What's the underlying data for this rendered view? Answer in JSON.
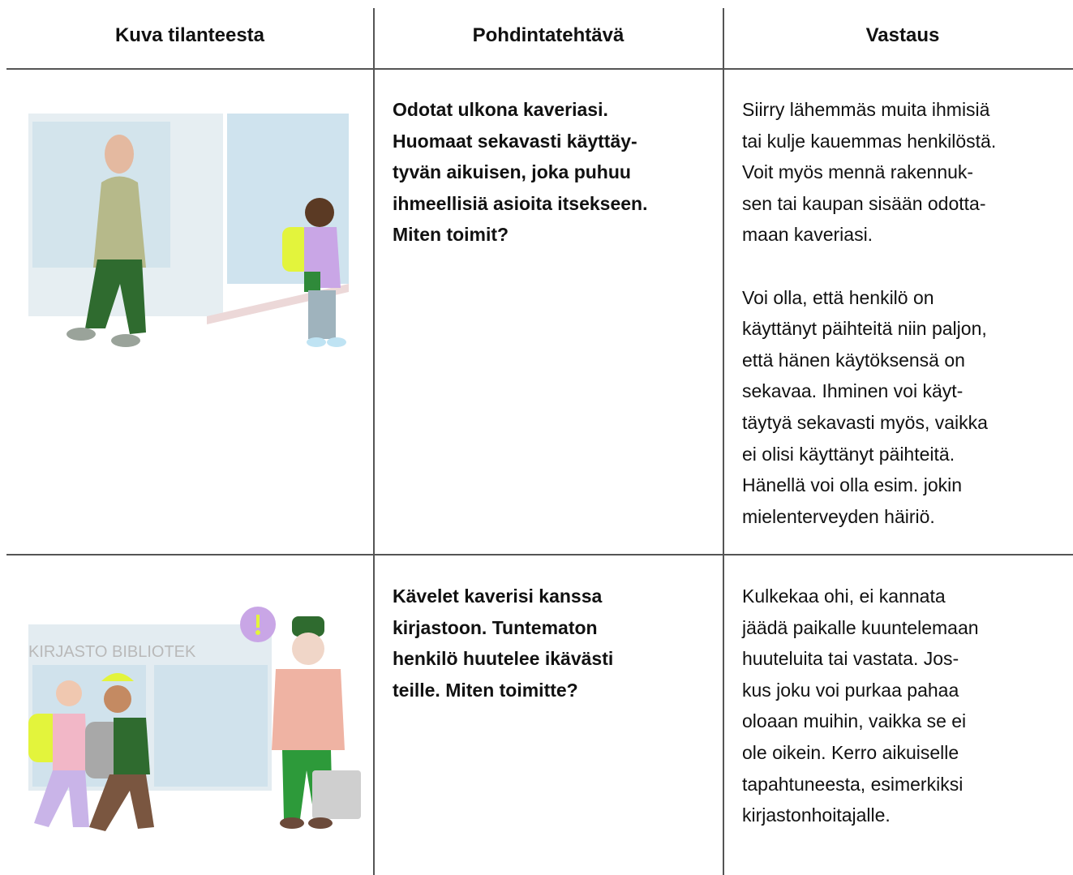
{
  "table": {
    "header": [
      "Kuva tilanteesta",
      "Pohdintatehtävä",
      "Vastaus"
    ],
    "rows": [
      {
        "task": [
          "Odotat ulkona kaveriasi.",
          "Huomaat sekavasti käyttäy-",
          "tyvän aikuisen, joka puhuu",
          "ihmeellisiä asioita itsekseen.",
          "Miten toimit?"
        ],
        "answer": [
          [
            "Siirry lähemmäs muita ihmisiä",
            "tai kulje kauemmas henkilöstä.",
            "Voit myös mennä rakennuk-",
            "sen tai kaupan sisään odotta-",
            "maan kaveriasi."
          ],
          [
            "Voi olla, että henkilö on",
            "käyttänyt päihteitä niin paljon,",
            "että hänen käytöksensä on",
            "sekavaa. Ihminen voi käyt-",
            "täytyä sekavasti myös, vaikka",
            "ei olisi käyttänyt päihteitä.",
            "Hänellä voi olla esim. jokin",
            "mielenterveyden häiriö."
          ]
        ]
      },
      {
        "image_text": "KIRJASTO  BIBLIOTEK",
        "task": [
          "Kävelet kaverisi kanssa",
          "kirjastoon. Tuntematon",
          "henkilö huutelee ikävästi",
          "teille. Miten toimitte?"
        ],
        "answer": [
          [
            "Kulkekaa ohi, ei kannata",
            "jäädä paikalle kuuntelemaan",
            "huuteluita tai vastata. Jos-",
            "kus joku voi purkaa pahaa",
            "oloaan muihin, vaikka se ei",
            "ole oikein. Kerro aikuiselle",
            "tapahtuneesta, esimerkiksi",
            "kirjastonhoitajalle."
          ]
        ]
      }
    ]
  }
}
